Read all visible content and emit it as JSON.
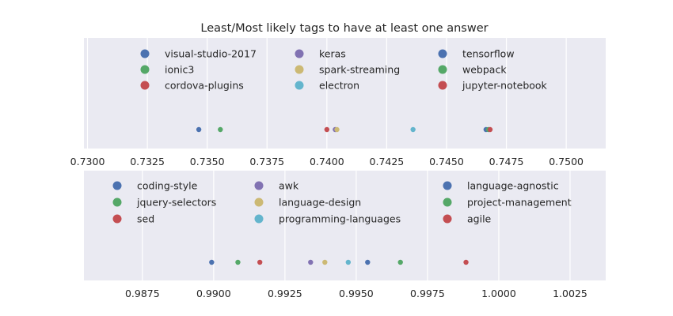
{
  "chart_data": [
    {
      "type": "scatter",
      "title": "Least/Most likely tags to have at least one answer",
      "xlim": [
        0.72985,
        0.75165
      ],
      "xticks": [
        "0.7300",
        "0.7325",
        "0.7350",
        "0.7375",
        "0.7400",
        "0.7425",
        "0.7450",
        "0.7475",
        "0.7500"
      ],
      "grid": true,
      "legend_placement": "top",
      "series": [
        {
          "name": "visual-studio-2017",
          "color": "#4c72b0",
          "value": 0.73465
        },
        {
          "name": "ionic3",
          "color": "#55a868",
          "value": 0.73555
        },
        {
          "name": "cordova-plugins",
          "color": "#c44e52",
          "value": 0.74
        },
        {
          "name": "keras",
          "color": "#8172b2",
          "value": 0.74035
        },
        {
          "name": "spark-streaming",
          "color": "#ccb974",
          "value": 0.74042
        },
        {
          "name": "electron",
          "color": "#64b5cd",
          "value": 0.7436
        },
        {
          "name": "tensorflow",
          "color": "#4c72b0",
          "value": 0.74665
        },
        {
          "name": "webpack",
          "color": "#55a868",
          "value": 0.74675
        },
        {
          "name": "jupyter-notebook",
          "color": "#c44e52",
          "value": 0.74682
        }
      ]
    },
    {
      "type": "scatter",
      "title": "",
      "xlim": [
        0.98545,
        1.00375
      ],
      "xticks": [
        "0.9875",
        "0.9900",
        "0.9925",
        "0.9950",
        "0.9975",
        "1.0000",
        "1.0025"
      ],
      "grid": true,
      "legend_placement": "top",
      "series": [
        {
          "name": "coding-style",
          "color": "#4c72b0",
          "value": 0.98993
        },
        {
          "name": "jquery-selectors",
          "color": "#55a868",
          "value": 0.99085
        },
        {
          "name": "sed",
          "color": "#c44e52",
          "value": 0.99162
        },
        {
          "name": "awk",
          "color": "#8172b2",
          "value": 0.9934
        },
        {
          "name": "language-design",
          "color": "#ccb974",
          "value": 0.9939
        },
        {
          "name": "programming-languages",
          "color": "#64b5cd",
          "value": 0.99472
        },
        {
          "name": "language-agnostic",
          "color": "#4c72b0",
          "value": 0.9954
        },
        {
          "name": "project-management",
          "color": "#55a868",
          "value": 0.99655
        },
        {
          "name": "agile",
          "color": "#c44e52",
          "value": 0.99885
        }
      ]
    }
  ]
}
